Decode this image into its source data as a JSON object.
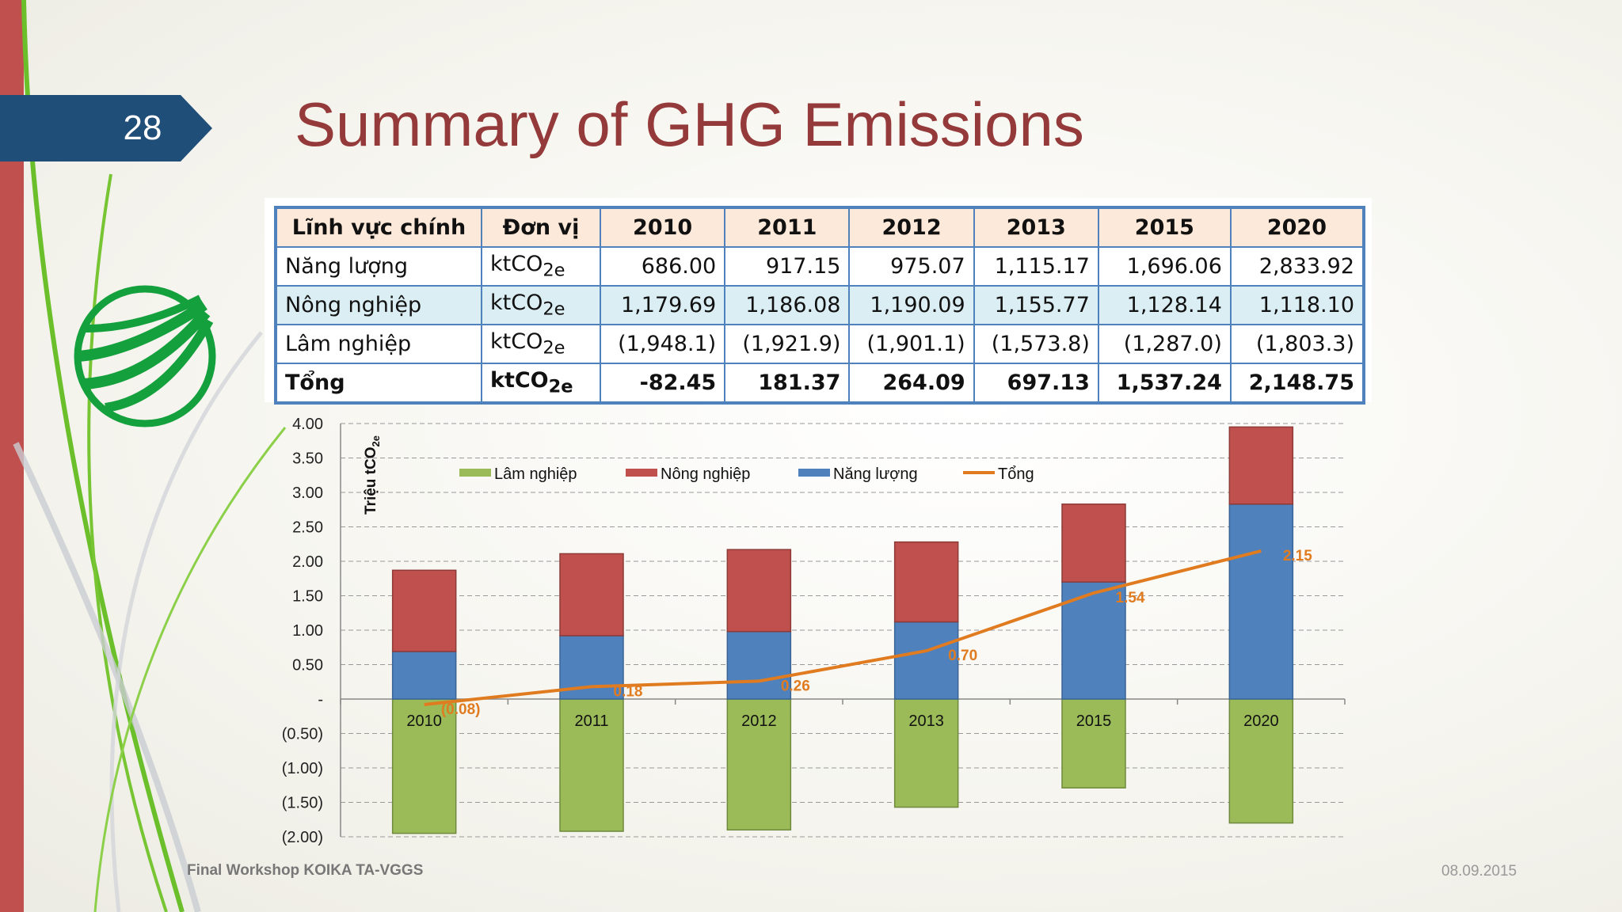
{
  "slide_number": "28",
  "title": "Summary of GHG Emissions",
  "table": {
    "headers": [
      "Lĩnh vực chính",
      "Đơn vị",
      "2010",
      "2011",
      "2012",
      "2013",
      "2015",
      "2020"
    ],
    "unit_base": "ktCO",
    "unit_sub": "2e",
    "rows": [
      {
        "sector": "Năng lượng",
        "values": [
          "686.00",
          "917.15",
          "975.07",
          "1,115.17",
          "1,696.06",
          "2,833.92"
        ]
      },
      {
        "sector": "Nông nghiệp",
        "values": [
          "1,179.69",
          "1,186.08",
          "1,190.09",
          "1,155.77",
          "1,128.14",
          "1,118.10"
        ]
      },
      {
        "sector": "Lâm nghiệp",
        "values": [
          "(1,948.1)",
          "(1,921.9)",
          "(1,901.1)",
          "(1,573.8)",
          "(1,287.0)",
          "(1,803.3)"
        ]
      },
      {
        "sector": "Tổng",
        "values": [
          "-82.45",
          "181.37",
          "264.09",
          "697.13",
          "1,537.24",
          "2,148.75"
        ]
      }
    ]
  },
  "footer": {
    "left": "Final Workshop KOIKA TA-VGGS",
    "right": "08.09.2015"
  },
  "colors": {
    "title": "#953a3a",
    "lam_nghiep": "#9bbb59",
    "nong_nghiep": "#c0504d",
    "nang_luong": "#4f81bd",
    "tong": "#e07b20"
  },
  "chart_data": {
    "type": "bar",
    "stacked": true,
    "categories": [
      "2010",
      "2011",
      "2012",
      "2013",
      "2015",
      "2020"
    ],
    "ylabel_base": "Triệu tCO",
    "ylabel_sub": "2e",
    "ylim": [
      -2.0,
      4.0
    ],
    "yticks": [
      {
        "value": 4.0,
        "label": "4.00"
      },
      {
        "value": 3.5,
        "label": "3.50"
      },
      {
        "value": 3.0,
        "label": "3.00"
      },
      {
        "value": 2.5,
        "label": "2.50"
      },
      {
        "value": 2.0,
        "label": "2.00"
      },
      {
        "value": 1.5,
        "label": "1.50"
      },
      {
        "value": 1.0,
        "label": "1.00"
      },
      {
        "value": 0.5,
        "label": "0.50"
      },
      {
        "value": 0.0,
        "label": "-"
      },
      {
        "value": -0.5,
        "label": "(0.50)"
      },
      {
        "value": -1.0,
        "label": "(1.00)"
      },
      {
        "value": -1.5,
        "label": "(1.50)"
      },
      {
        "value": -2.0,
        "label": "(2.00)"
      }
    ],
    "grid": true,
    "legend_position": "top",
    "series": [
      {
        "name": "Lâm nghiệp",
        "key": "lam_nghiep",
        "values": [
          -1.95,
          -1.92,
          -1.9,
          -1.57,
          -1.29,
          -1.8
        ]
      },
      {
        "name": "Nông nghiệp",
        "key": "nong_nghiep",
        "values": [
          1.18,
          1.19,
          1.19,
          1.16,
          1.13,
          1.12
        ]
      },
      {
        "name": "Năng lượng",
        "key": "nang_luong",
        "values": [
          0.69,
          0.92,
          0.98,
          1.12,
          1.7,
          2.83
        ]
      }
    ],
    "line_series": {
      "name": "Tổng",
      "key": "tong",
      "values": [
        -0.08,
        0.18,
        0.26,
        0.7,
        1.54,
        2.15
      ],
      "labels": [
        "(0.08)",
        "0.18",
        "0.26",
        "0.70",
        "1.54",
        "2.15"
      ]
    }
  }
}
